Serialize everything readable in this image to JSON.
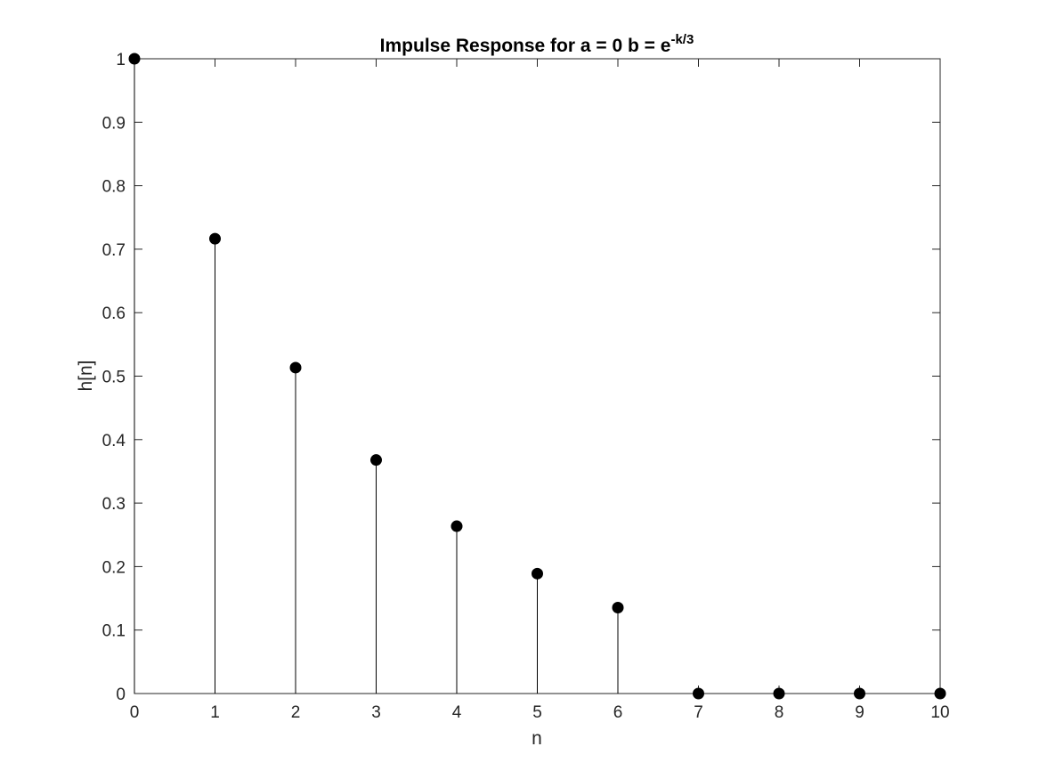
{
  "chart_data": {
    "type": "stem",
    "title": "Impulse Response for a = 0 b = e",
    "title_superscript": "-k/3",
    "xlabel": "n",
    "ylabel": "h[n]",
    "xlim": [
      0,
      10
    ],
    "ylim": [
      0,
      1
    ],
    "x_ticks": [
      "0",
      "1",
      "2",
      "3",
      "4",
      "5",
      "6",
      "7",
      "8",
      "9",
      "10"
    ],
    "y_ticks": [
      "0",
      "0.1",
      "0.2",
      "0.3",
      "0.4",
      "0.5",
      "0.6",
      "0.7",
      "0.8",
      "0.9",
      "1"
    ],
    "grid": false,
    "marker": "filled-circle",
    "color": "#000000",
    "x": [
      0,
      1,
      2,
      3,
      4,
      5,
      6,
      7,
      8,
      9,
      10
    ],
    "values": [
      1.0,
      0.7165,
      0.5134,
      0.3679,
      0.2636,
      0.1889,
      0.1353,
      0,
      0,
      0,
      0
    ]
  }
}
